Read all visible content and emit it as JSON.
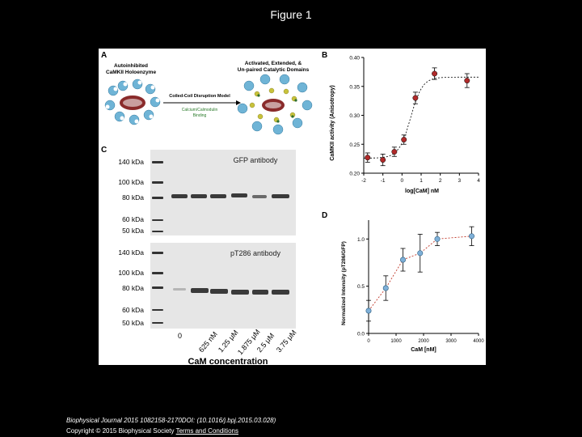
{
  "slide": {
    "title": "Figure 1"
  },
  "panelA": {
    "label": "A",
    "left_title_1": "Autoinhibited",
    "left_title_2": "CaMKII Holoenzyme",
    "right_title_1": "Activated, Extended, &",
    "right_title_2": "Un-paired Catalytic Domains",
    "arrow_top": "Coiled-Coil Disruption Model",
    "arrow_bottom_1": "Calcium/Calmodulin",
    "arrow_bottom_2": "Binding"
  },
  "panelB": {
    "label": "B",
    "ylabel": "CaMKII activity (Anisotropy)",
    "xlabel": "log[CaM] nM",
    "x_ticks": [
      "-2",
      "-1",
      "0",
      "1",
      "2",
      "3",
      "4"
    ],
    "y_ticks": [
      "0.20",
      "0.25",
      "0.30",
      "0.35",
      "0.40"
    ]
  },
  "panelC": {
    "label": "C",
    "blot1_title": "GFP antibody",
    "blot2_title": "pT286 antibody",
    "markers": [
      "140 kDa",
      "100 kDa",
      "80 kDa",
      "60 kDa",
      "50 kDa"
    ],
    "lanes": [
      "0",
      "625 nM",
      "1.25 μM",
      "1.875 μM",
      "2.5 μM",
      "3.75 μM"
    ],
    "xlabel": "CaM concentration"
  },
  "panelD": {
    "label": "D",
    "ylabel": "Normalized Intensity (pT286/GFP)",
    "xlabel": "CaM [nM]",
    "x_ticks": [
      "0",
      "1000",
      "2000",
      "3000",
      "4000"
    ],
    "y_ticks": [
      "0.0",
      "0.5",
      "1.0"
    ]
  },
  "chart_data": [
    {
      "type": "scatter",
      "panel": "B",
      "xlabel": "log[CaM] nM",
      "ylabel": "CaMKII activity (Anisotropy)",
      "xlim": [
        -2,
        4
      ],
      "ylim": [
        0.2,
        0.4
      ],
      "x": [
        -1.8,
        -1.0,
        -0.4,
        0.1,
        0.7,
        1.7,
        3.4
      ],
      "y": [
        0.227,
        0.223,
        0.237,
        0.258,
        0.33,
        0.372,
        0.36
      ],
      "error": [
        0.008,
        0.01,
        0.008,
        0.008,
        0.01,
        0.01,
        0.012
      ],
      "fit": "sigmoid",
      "color": "#b02a2a"
    },
    {
      "type": "line",
      "panel": "D",
      "xlabel": "CaM [nM]",
      "ylabel": "Normalized Intensity (pT286/GFP)",
      "xlim": [
        0,
        4000
      ],
      "ylim": [
        0,
        1.2
      ],
      "x": [
        0,
        625,
        1250,
        1875,
        2500,
        3750
      ],
      "y": [
        0.24,
        0.48,
        0.78,
        0.85,
        1.0,
        1.03
      ],
      "error": [
        0.11,
        0.13,
        0.12,
        0.2,
        0.07,
        0.1
      ],
      "color": "#7fb0d8"
    }
  ],
  "footer": {
    "line1": "Biophysical Journal 2015 1082158-2170DOI: (10.1016/j.bpj.2015.03.028)",
    "line2": "Copyright © 2015 Biophysical Society",
    "link": "Terms and Conditions"
  }
}
